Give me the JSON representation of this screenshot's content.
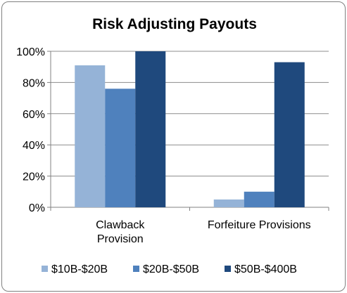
{
  "chart_data": {
    "type": "bar",
    "title": "Risk Adjusting Payouts",
    "xlabel": "",
    "ylabel": "",
    "categories": [
      [
        "Clawback",
        "Provision"
      ],
      [
        "Forfeiture Provisions"
      ]
    ],
    "series": [
      {
        "name": "$10B-$20B",
        "color": "#95b3d7",
        "values": [
          91,
          5
        ]
      },
      {
        "name": "$20B-$50B",
        "color": "#4f81bd",
        "values": [
          76,
          10
        ]
      },
      {
        "name": "$50B-$400B",
        "color": "#1f497d",
        "values": [
          100,
          93
        ]
      }
    ],
    "ylim": [
      0,
      100
    ],
    "yticks": [
      0,
      20,
      40,
      60,
      80,
      100
    ],
    "ytick_labels": [
      "0%",
      "20%",
      "40%",
      "60%",
      "80%",
      "100%"
    ],
    "grid": true,
    "legend": "bottom"
  }
}
